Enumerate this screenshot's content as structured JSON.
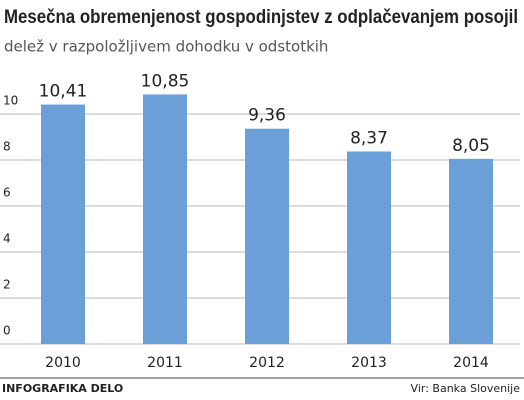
{
  "chart_data": {
    "type": "bar",
    "title": "Mesečna obremenjenost gospodinjstev z odplačevanjem posojil",
    "subtitle": "delež v razpoložljivem dohodku v odstotkih",
    "categories": [
      "2010",
      "2011",
      "2012",
      "2013",
      "2014"
    ],
    "values": [
      10.41,
      10.85,
      9.36,
      8.37,
      8.05
    ],
    "value_labels": [
      "10,41",
      "10,85",
      "9,36",
      "8,37",
      "8,05"
    ],
    "color": "#6a9fd8",
    "ylim": [
      0,
      12
    ],
    "yticks": [
      0,
      2,
      4,
      6,
      8,
      10
    ],
    "grid": true,
    "credit": "INFOGRAFIKA DELO",
    "source": "Vir: Banka Slovenije"
  }
}
